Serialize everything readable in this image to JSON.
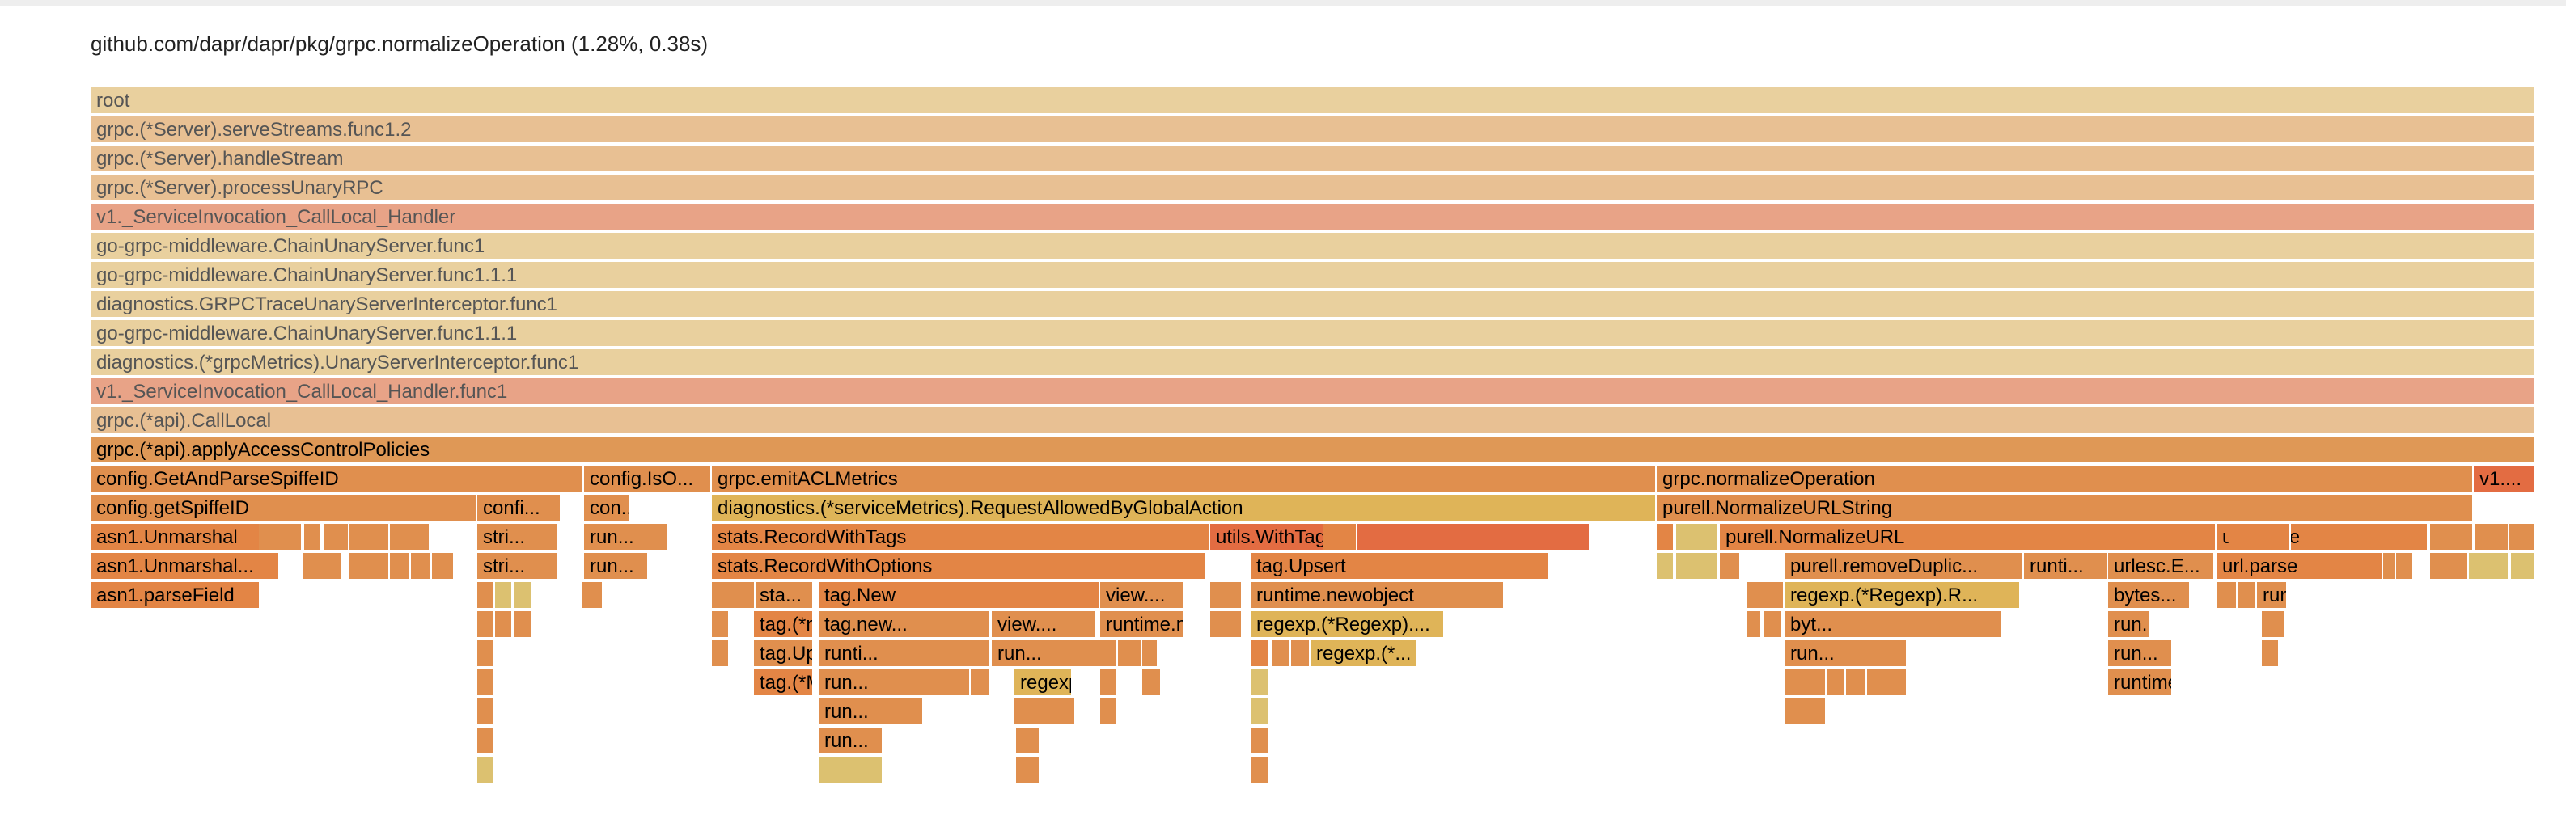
{
  "hover_details": "github.com/dapr/dapr/pkg/grpc.normalizeOperation (1.28%, 0.38s)",
  "flame": [
    {
      "label": "root",
      "color": "beige",
      "dim": true
    },
    {
      "label": "grpc.(*Server).serveStreams.func1.2",
      "color": "peach",
      "dim": true
    },
    {
      "label": "grpc.(*Server).handleStream",
      "color": "peach",
      "dim": true
    },
    {
      "label": "grpc.(*Server).processUnaryRPC",
      "color": "peach",
      "dim": true
    },
    {
      "label": "v1._ServiceInvocation_CallLocal_Handler",
      "color": "pink",
      "dim": true
    },
    {
      "label": "go-grpc-middleware.ChainUnaryServer.func1",
      "color": "beige",
      "dim": true
    },
    {
      "label": "go-grpc-middleware.ChainUnaryServer.func1.1.1",
      "color": "beige",
      "dim": true
    },
    {
      "label": "diagnostics.GRPCTraceUnaryServerInterceptor.func1",
      "color": "beige",
      "dim": true
    },
    {
      "label": "go-grpc-middleware.ChainUnaryServer.func1.1.1",
      "color": "beige",
      "dim": true
    },
    {
      "label": "diagnostics.(*grpcMetrics).UnaryServerInterceptor.func1",
      "color": "beige",
      "dim": true
    },
    {
      "label": "v1._ServiceInvocation_CallLocal_Handler.func1",
      "color": "pink",
      "dim": true
    },
    {
      "label": "grpc.(*api).CallLocal",
      "color": "peach",
      "dim": true
    },
    {
      "label": "grpc.(*api).applyAccessControlPolicies",
      "color": "orange"
    },
    {
      "label": "config.GetAndParseSpiffeID",
      "color": "or2"
    },
    {
      "label": "config.IsO...",
      "color": "or2"
    },
    {
      "label": "grpc.emitACLMetrics",
      "color": "or2"
    },
    {
      "label": "grpc.normalizeOperation",
      "color": "or2"
    },
    {
      "label": "v1....",
      "color": "red"
    },
    {
      "label": "config.getSpiffeID",
      "color": "or2"
    },
    {
      "label": "confi...",
      "color": "or2"
    },
    {
      "label": "con...",
      "color": "or2"
    },
    {
      "label": "diagnostics.(*serviceMetrics).RequestAllowedByGlobalAction",
      "color": "yellow"
    },
    {
      "label": "purell.NormalizeURLString",
      "color": "or2"
    },
    {
      "label": "asn1.Unmarshal",
      "color": "or3"
    },
    {
      "label": "stri...",
      "color": "or2"
    },
    {
      "label": "run...",
      "color": "or2"
    },
    {
      "label": "stats.RecordWithTags",
      "color": "or3"
    },
    {
      "label": "utils.WithTags",
      "color": "red"
    },
    {
      "label": "purell.NormalizeURL",
      "color": "or3"
    },
    {
      "label": "url.Parse",
      "color": "or3"
    },
    {
      "label": "asn1.Unmarshal...",
      "color": "or3"
    },
    {
      "label": "stri...",
      "color": "or2"
    },
    {
      "label": "run...",
      "color": "or2"
    },
    {
      "label": "stats.RecordWithOptions",
      "color": "or3"
    },
    {
      "label": "tag.Upsert",
      "color": "or3"
    },
    {
      "label": "purell.removeDuplic...",
      "color": "or2"
    },
    {
      "label": "runti...",
      "color": "or2"
    },
    {
      "label": "urlesc.E...",
      "color": "or2"
    },
    {
      "label": "url.parse",
      "color": "or3"
    },
    {
      "label": "asn1.parseField",
      "color": "or3"
    },
    {
      "label": "sta...",
      "color": "or2"
    },
    {
      "label": "tag.New",
      "color": "or3"
    },
    {
      "label": "view....",
      "color": "or2"
    },
    {
      "label": "runtime.newobject",
      "color": "or2"
    },
    {
      "label": "regexp.(*Regexp).R...",
      "color": "yellow"
    },
    {
      "label": "bytes...",
      "color": "or2"
    },
    {
      "label": "run...",
      "color": "or2"
    },
    {
      "label": "tag.(*mutator...",
      "color": "or3"
    },
    {
      "label": "tag.new...",
      "color": "or2"
    },
    {
      "label": "view....",
      "color": "or2"
    },
    {
      "label": "runtime.mallocgc",
      "color": "or2"
    },
    {
      "label": "regexp.(*Regexp)....",
      "color": "yellow"
    },
    {
      "label": "byt...",
      "color": "or2"
    },
    {
      "label": "run...",
      "color": "or2"
    },
    {
      "label": "tag.Upsert.fun...",
      "color": "or2"
    },
    {
      "label": "runti...",
      "color": "or2"
    },
    {
      "label": "run...",
      "color": "or2"
    },
    {
      "label": "regexp.(*...",
      "color": "yellow"
    },
    {
      "label": "run...",
      "color": "or2"
    },
    {
      "label": "run...",
      "color": "or2"
    },
    {
      "label": "tag.(*Map)....",
      "color": "or3"
    },
    {
      "label": "run...",
      "color": "or2"
    },
    {
      "label": "regexp.(*...",
      "color": "yellow"
    },
    {
      "label": "run...",
      "color": "or2"
    },
    {
      "label": "runtime...",
      "color": "or2"
    },
    {
      "label": "run...",
      "color": "or2"
    },
    {
      "label": "run...",
      "color": "or2"
    },
    {
      "label": "run...",
      "color": "or2"
    },
    {
      "label": "",
      "color": "ylw2"
    },
    {
      "label": "",
      "color": "or2"
    },
    {
      "label": "",
      "color": "or2"
    },
    {
      "label": "",
      "color": "or2"
    },
    {
      "label": "",
      "color": "or2"
    },
    {
      "label": "",
      "color": "or2"
    },
    {
      "label": "",
      "color": "or2"
    },
    {
      "label": "",
      "color": "or2"
    },
    {
      "label": "",
      "color": "or2"
    },
    {
      "label": "",
      "color": "or2"
    },
    {
      "label": "",
      "color": "or2"
    },
    {
      "label": "",
      "color": "or2"
    },
    {
      "label": "",
      "color": "or3"
    },
    {
      "label": "",
      "color": "or3"
    },
    {
      "label": "",
      "color": "or3"
    },
    {
      "label": "",
      "color": "ylw2"
    },
    {
      "label": "",
      "color": "ylw2"
    },
    {
      "label": "",
      "color": "ylw2"
    },
    {
      "label": "",
      "color": "or2"
    },
    {
      "label": "",
      "color": "or2"
    },
    {
      "label": "",
      "color": "or2"
    },
    {
      "label": "",
      "color": "or2"
    },
    {
      "label": "",
      "color": "or2"
    },
    {
      "label": "",
      "color": "ylw2"
    },
    {
      "label": "",
      "color": "ylw2"
    },
    {
      "label": "",
      "color": "ylw2"
    },
    {
      "label": "",
      "color": "or2"
    },
    {
      "label": "",
      "color": "or2"
    },
    {
      "label": "",
      "color": "or2"
    },
    {
      "label": "",
      "color": "or2"
    },
    {
      "label": "",
      "color": "or2"
    },
    {
      "label": "",
      "color": "or2"
    },
    {
      "label": "",
      "color": "or2"
    },
    {
      "label": "",
      "color": "or2"
    },
    {
      "label": "",
      "color": "or2"
    },
    {
      "label": "",
      "color": "or2"
    },
    {
      "label": "",
      "color": "or2"
    },
    {
      "label": "",
      "color": "or2"
    },
    {
      "label": "",
      "color": "or2"
    },
    {
      "label": "",
      "color": "or2"
    },
    {
      "label": "",
      "color": "or2"
    },
    {
      "label": "",
      "color": "or3"
    },
    {
      "label": "",
      "color": "ylw2"
    },
    {
      "label": "",
      "color": "ylw2"
    },
    {
      "label": "",
      "color": "or2"
    },
    {
      "label": "",
      "color": "or2"
    },
    {
      "label": "",
      "color": "or2"
    },
    {
      "label": "",
      "color": "or2"
    },
    {
      "label": "",
      "color": "or2"
    },
    {
      "label": "",
      "color": "or2"
    },
    {
      "label": "",
      "color": "or2"
    },
    {
      "label": "",
      "color": "or2"
    },
    {
      "label": "",
      "color": "or2"
    },
    {
      "label": "",
      "color": "or2"
    },
    {
      "label": "",
      "color": "ylw2"
    },
    {
      "label": "",
      "color": "ylw2"
    },
    {
      "label": "",
      "color": "ylw2"
    },
    {
      "label": "",
      "color": "or2"
    },
    {
      "label": "",
      "color": "or2"
    },
    {
      "label": "",
      "color": "or2"
    },
    {
      "label": "",
      "color": "or2"
    },
    {
      "label": "",
      "color": "or2"
    },
    {
      "label": "",
      "color": "or2"
    },
    {
      "label": "",
      "color": "or2"
    },
    {
      "label": "",
      "color": "or2"
    },
    {
      "label": "",
      "color": "or2"
    },
    {
      "label": "",
      "color": "or2"
    },
    {
      "label": "",
      "color": "or2"
    },
    {
      "label": "",
      "color": "or2"
    },
    {
      "label": "",
      "color": "or2"
    },
    {
      "label": "",
      "color": "or2"
    },
    {
      "label": "",
      "color": "or2"
    },
    {
      "label": "",
      "color": "or2"
    },
    {
      "label": "",
      "color": "or2"
    },
    {
      "label": "",
      "color": "or2"
    },
    {
      "label": "",
      "color": "or2"
    },
    {
      "label": "",
      "color": "or2"
    },
    {
      "label": "",
      "color": "or2"
    },
    {
      "label": "",
      "color": "or2"
    },
    {
      "label": "",
      "color": "or2"
    },
    {
      "label": "",
      "color": "or2"
    },
    {
      "label": "",
      "color": "or2"
    },
    {
      "label": "",
      "color": "or2"
    }
  ]
}
